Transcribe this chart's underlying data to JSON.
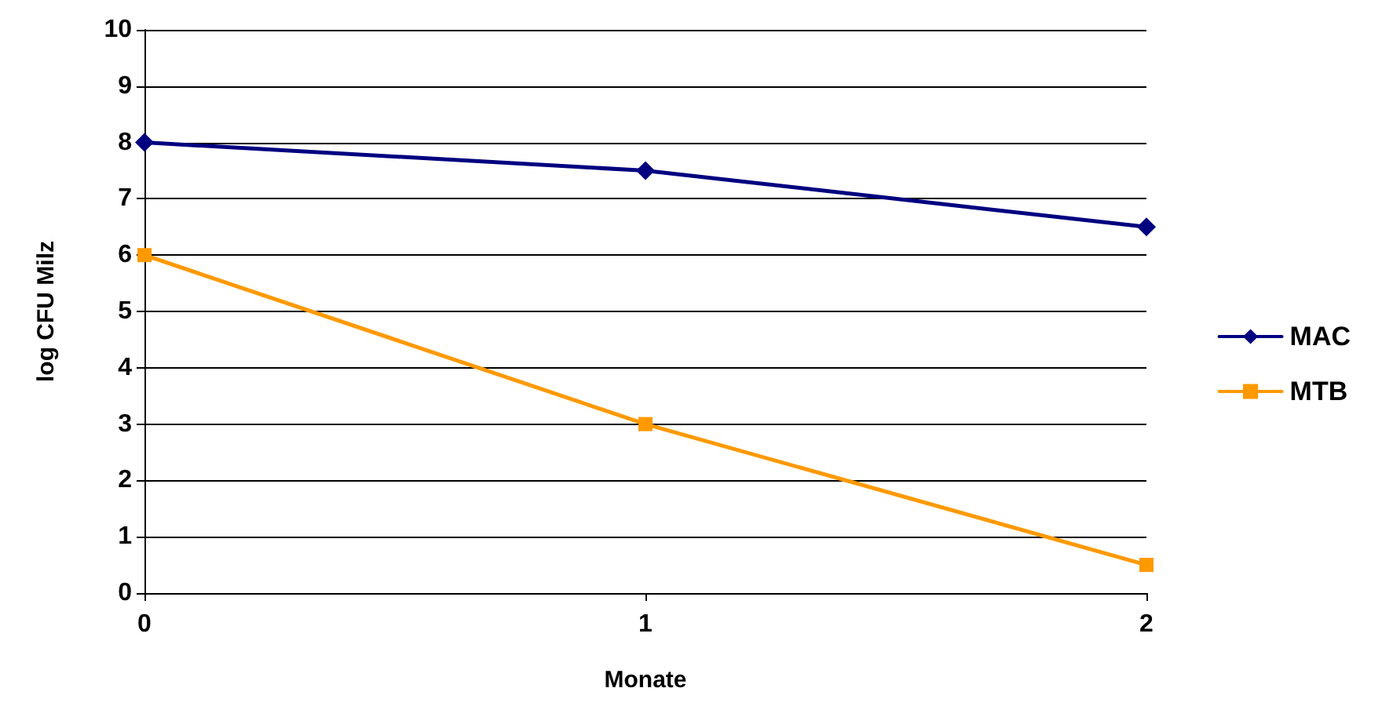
{
  "chart_data": {
    "type": "line",
    "xlabel": "Monate",
    "ylabel": "log CFU Milz",
    "x": [
      0,
      1,
      2
    ],
    "xlim": [
      0,
      2
    ],
    "xticks": [
      0,
      1,
      2
    ],
    "ylim": [
      0,
      10
    ],
    "yticks": [
      0,
      1,
      2,
      3,
      4,
      5,
      6,
      7,
      8,
      9,
      10
    ],
    "series": [
      {
        "name": "MAC",
        "color": "#000080",
        "marker": "diamond",
        "values": [
          8,
          7.5,
          6.5
        ]
      },
      {
        "name": "MTB",
        "color": "#ff9900",
        "marker": "square",
        "values": [
          6,
          3,
          0.5
        ]
      }
    ],
    "grid": "y",
    "legend": "right",
    "line_style": "solid"
  }
}
